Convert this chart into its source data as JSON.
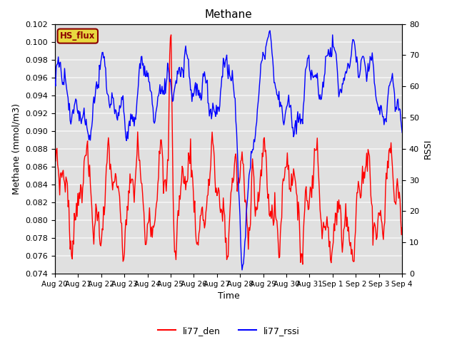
{
  "title": "Methane",
  "xlabel": "Time",
  "ylabel_left": "Methane (mmol/m3)",
  "ylabel_right": "RSSI",
  "ylim_left": [
    0.074,
    0.102
  ],
  "ylim_right": [
    0,
    80
  ],
  "yticks_right": [
    0,
    10,
    20,
    30,
    40,
    50,
    60,
    70,
    80
  ],
  "background_color": "#e0e0e0",
  "grid_color": "#f5f5f5",
  "line_red_color": "red",
  "line_blue_color": "blue",
  "legend_box_label": "HS_flux",
  "legend_box_bg": "#e8d840",
  "legend_box_edge": "#8B0000",
  "legend_items": [
    "li77_den",
    "li77_rssi"
  ],
  "x_tick_labels": [
    "Aug 20",
    "Aug 21",
    "Aug 22",
    "Aug 23",
    "Aug 24",
    "Aug 25",
    "Aug 26",
    "Aug 27",
    "Aug 28",
    "Aug 29",
    "Aug 30",
    "Aug 31",
    "Sep 1",
    "Sep 2",
    "Sep 3",
    "Sep 4"
  ],
  "figsize": [
    6.4,
    4.8
  ],
  "dpi": 100
}
